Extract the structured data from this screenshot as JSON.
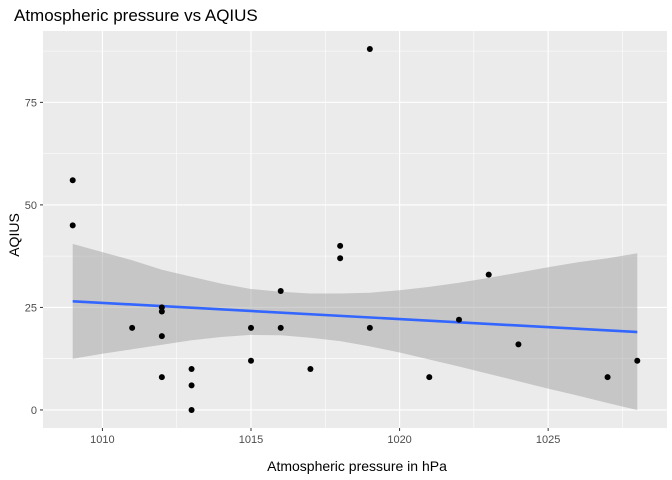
{
  "chart_data": {
    "type": "scatter",
    "title": "Atmospheric pressure vs AQIUS",
    "xlabel": "Atmospheric pressure in hPa",
    "ylabel": "AQIUS",
    "xlim": [
      1008.0,
      1029.0
    ],
    "ylim": [
      -4.4,
      92.4
    ],
    "x_ticks": [
      1010,
      1015,
      1020,
      1025
    ],
    "y_ticks": [
      0,
      25,
      50,
      75
    ],
    "x_tick_labels": [
      "1010",
      "1015",
      "1020",
      "1025"
    ],
    "y_tick_labels": [
      "0",
      "25",
      "50",
      "75"
    ],
    "grid": true,
    "points": [
      {
        "x": 1009,
        "y": 56
      },
      {
        "x": 1009,
        "y": 45
      },
      {
        "x": 1011,
        "y": 20
      },
      {
        "x": 1012,
        "y": 25
      },
      {
        "x": 1012,
        "y": 24
      },
      {
        "x": 1012,
        "y": 18
      },
      {
        "x": 1012,
        "y": 8
      },
      {
        "x": 1013,
        "y": 10
      },
      {
        "x": 1013,
        "y": 6
      },
      {
        "x": 1013,
        "y": 0
      },
      {
        "x": 1015,
        "y": 20
      },
      {
        "x": 1015,
        "y": 12
      },
      {
        "x": 1016,
        "y": 29
      },
      {
        "x": 1016,
        "y": 20
      },
      {
        "x": 1017,
        "y": 10
      },
      {
        "x": 1018,
        "y": 40
      },
      {
        "x": 1018,
        "y": 37
      },
      {
        "x": 1019,
        "y": 88
      },
      {
        "x": 1019,
        "y": 20
      },
      {
        "x": 1021,
        "y": 8
      },
      {
        "x": 1022,
        "y": 22
      },
      {
        "x": 1023,
        "y": 33
      },
      {
        "x": 1024,
        "y": 16
      },
      {
        "x": 1027,
        "y": 8
      },
      {
        "x": 1028,
        "y": 12
      }
    ],
    "trend_line": {
      "x": [
        1009,
        1028
      ],
      "y": [
        26.5,
        19.0
      ]
    },
    "confidence_band": {
      "x": [
        1009,
        1010,
        1011,
        1012,
        1013,
        1014,
        1015,
        1016,
        1017,
        1018,
        1019,
        1020,
        1021,
        1022,
        1023,
        1024,
        1025,
        1026,
        1027,
        1028
      ],
      "upper": [
        40.5,
        38.5,
        36.5,
        34.2,
        32.5,
        30.8,
        29.5,
        28.8,
        28.4,
        28.4,
        28.6,
        29.2,
        30.0,
        31.0,
        32.2,
        33.5,
        34.8,
        36.0,
        37.0,
        38.2
      ],
      "lower": [
        12.5,
        13.7,
        14.8,
        15.9,
        17.0,
        17.8,
        18.3,
        18.2,
        17.6,
        16.8,
        15.5,
        14.0,
        12.3,
        10.6,
        8.8,
        7.0,
        5.2,
        3.5,
        1.7,
        0.0
      ]
    },
    "colors": {
      "panel": "#ebebeb",
      "grid": "#ffffff",
      "point": "#000000",
      "trend_line": "#3366ff",
      "band": "#999999"
    }
  }
}
